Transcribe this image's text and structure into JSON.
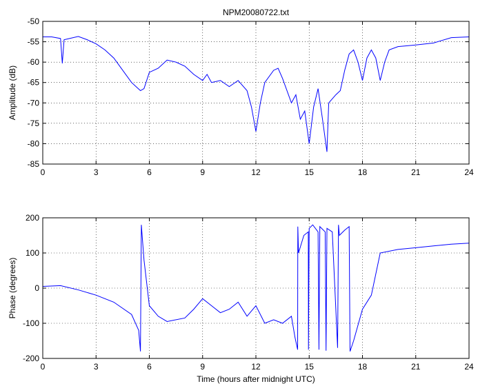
{
  "chart_data": [
    {
      "type": "line",
      "title": "NPM20080722.txt",
      "ylabel": "Amplitude (dB)",
      "x": [
        0,
        0.5,
        1,
        1.1,
        1.2,
        1.5,
        2,
        2.5,
        3,
        3.5,
        4,
        4.5,
        5,
        5.5,
        5.7,
        6,
        6.5,
        7,
        7.5,
        8,
        8.5,
        9,
        9.25,
        9.5,
        10,
        10.5,
        11,
        11.5,
        11.75,
        12,
        12.25,
        12.5,
        13,
        13.25,
        13.5,
        14,
        14.25,
        14.5,
        14.75,
        15,
        15.25,
        15.5,
        15.75,
        16,
        16.1,
        16.5,
        16.75,
        17,
        17.25,
        17.5,
        17.75,
        18,
        18.25,
        18.5,
        18.75,
        19,
        19.25,
        19.5,
        20,
        21,
        22,
        23,
        24
      ],
      "series": [
        {
          "name": "Amplitude",
          "color": "#0000ff",
          "values": [
            -53.8,
            -53.8,
            -54.2,
            -60.3,
            -54.5,
            -54.2,
            -53.7,
            -54.5,
            -55.5,
            -57,
            -59,
            -62,
            -65,
            -67,
            -66.5,
            -62.5,
            -61.5,
            -59.5,
            -60,
            -61,
            -63,
            -64.5,
            -63,
            -65,
            -64.5,
            -66,
            -64.5,
            -67,
            -71,
            -77,
            -70,
            -65,
            -62,
            -61.5,
            -64,
            -70,
            -68,
            -74,
            -72,
            -80,
            -71,
            -66.5,
            -74,
            -82,
            -70,
            -68,
            -67,
            -62,
            -58,
            -57,
            -60,
            -64.5,
            -59,
            -57,
            -59,
            -64.5,
            -60,
            -57,
            -56.2,
            -55.8,
            -55.3,
            -54,
            -53.8
          ]
        }
      ],
      "xlim": [
        0,
        24
      ],
      "xticks": [
        0,
        3,
        6,
        9,
        12,
        15,
        18,
        21,
        24
      ],
      "ylim": [
        -85,
        -50
      ],
      "yticks": [
        -85,
        -80,
        -75,
        -70,
        -65,
        -60,
        -55,
        -50
      ],
      "grid": true
    },
    {
      "type": "line",
      "xlabel": "Time (hours after midnight UTC)",
      "ylabel": "Phase (degrees)",
      "x": [
        0,
        1,
        2,
        3,
        4,
        5,
        5.4,
        5.5,
        5.55,
        5.7,
        6,
        6.5,
        7,
        8,
        8.5,
        9,
        9.5,
        10,
        10.5,
        11,
        11.5,
        12,
        12.5,
        13,
        13.5,
        14,
        14.2,
        14.35,
        14.36,
        14.4,
        14.7,
        14.95,
        14.96,
        15,
        15.2,
        15.5,
        15.55,
        15.6,
        15.9,
        15.95,
        16,
        16.3,
        16.6,
        16.65,
        16.7,
        17,
        17.25,
        17.3,
        17.5,
        18,
        18.5,
        19,
        20,
        21,
        22,
        23,
        24
      ],
      "series": [
        {
          "name": "Phase",
          "color": "#0000ff",
          "values": [
            5,
            7,
            -5,
            -20,
            -40,
            -75,
            -120,
            -180,
            180,
            80,
            -50,
            -80,
            -95,
            -85,
            -60,
            -30,
            -50,
            -70,
            -60,
            -40,
            -80,
            -50,
            -100,
            -90,
            -100,
            -80,
            -140,
            -175,
            175,
            100,
            150,
            160,
            -175,
            170,
            180,
            160,
            -175,
            175,
            160,
            -178,
            170,
            160,
            -170,
            180,
            150,
            165,
            175,
            -180,
            -150,
            -60,
            -20,
            100,
            110,
            115,
            120,
            125,
            128
          ]
        }
      ],
      "xlim": [
        0,
        24
      ],
      "xticks": [
        0,
        3,
        6,
        9,
        12,
        15,
        18,
        21,
        24
      ],
      "ylim": [
        -200,
        200
      ],
      "yticks": [
        -200,
        -100,
        0,
        100,
        200
      ],
      "grid": true
    }
  ]
}
